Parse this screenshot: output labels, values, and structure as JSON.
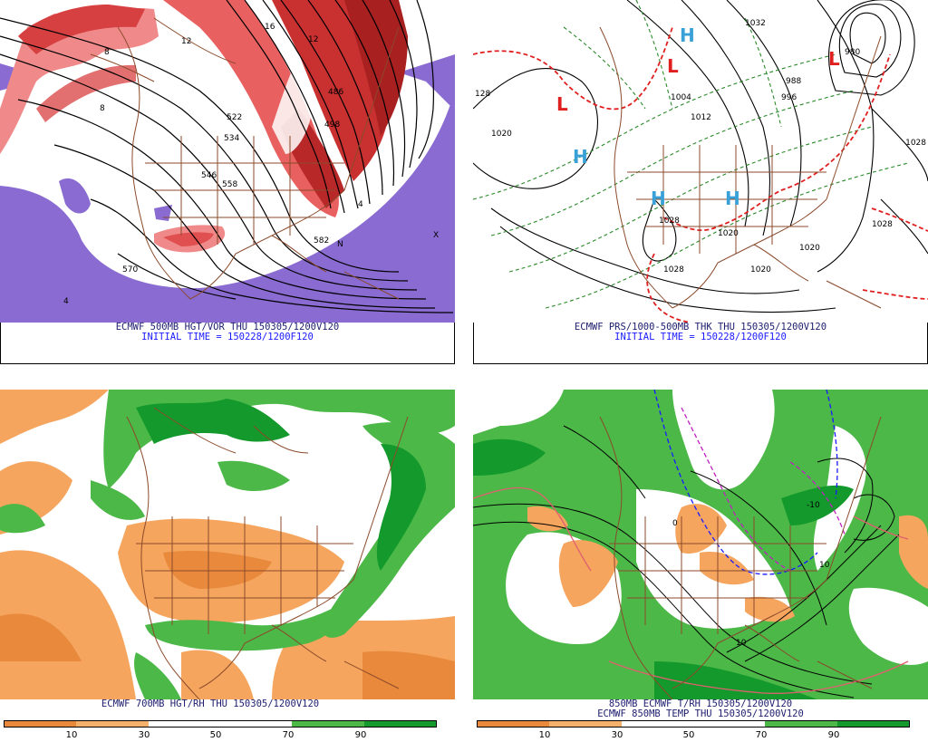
{
  "panels": {
    "top_left": {
      "caption": "ECMWF 500MB HGT/VOR THU 150305/1200V120",
      "subcaption": "INITIAL TIME = 150228/1200F120",
      "contour_labels": [
        "522",
        "534",
        "546",
        "558",
        "570",
        "582",
        "498",
        "486",
        "8",
        "8",
        "12",
        "16",
        "12",
        "4",
        "4",
        "N",
        "X"
      ]
    },
    "top_right": {
      "caption": "ECMWF PRS/1000-500MB THK THU 150305/1200V120",
      "subcaption": "INITIAL TIME = 150228/1200F120",
      "contour_labels": [
        "1020",
        "1004",
        "1012",
        "996",
        "988",
        "980",
        "1028",
        "1020",
        "1028",
        "1020",
        "1032",
        "1028",
        "1020",
        "128",
        "1028"
      ],
      "pressure_centers": [
        {
          "symbol": "H",
          "color": "#3aa0d8"
        },
        {
          "symbol": "H",
          "color": "#3aa0d8"
        },
        {
          "symbol": "H",
          "color": "#3aa0d8"
        },
        {
          "symbol": "H",
          "color": "#3aa0d8"
        },
        {
          "symbol": "L",
          "color": "#e02020"
        },
        {
          "symbol": "L",
          "color": "#e02020"
        },
        {
          "symbol": "L",
          "color": "#e02020"
        }
      ]
    },
    "bottom_left": {
      "caption": "ECMWF 700MB HGT/RH THU 150305/1200V120",
      "colorbar": {
        "ticks": [
          "10",
          "30",
          "50",
          "70",
          "90"
        ],
        "colors": [
          "#e8893c",
          "#f5b06b",
          "#ffffff",
          "#ffffff",
          "#4cb848",
          "#149a2c"
        ]
      }
    },
    "bottom_right": {
      "caption": "850MB ECMWF T/RH 150305/1200V120",
      "subcaption": "ECMWF 850MB TEMP THU 150305/1200V120",
      "contour_labels": [
        "0",
        "-10",
        "10",
        "10"
      ],
      "colorbar": {
        "ticks": [
          "10",
          "30",
          "50",
          "70",
          "90"
        ],
        "colors": [
          "#e8893c",
          "#f5b06b",
          "#ffffff",
          "#ffffff",
          "#4cb848",
          "#149a2c"
        ]
      }
    }
  }
}
